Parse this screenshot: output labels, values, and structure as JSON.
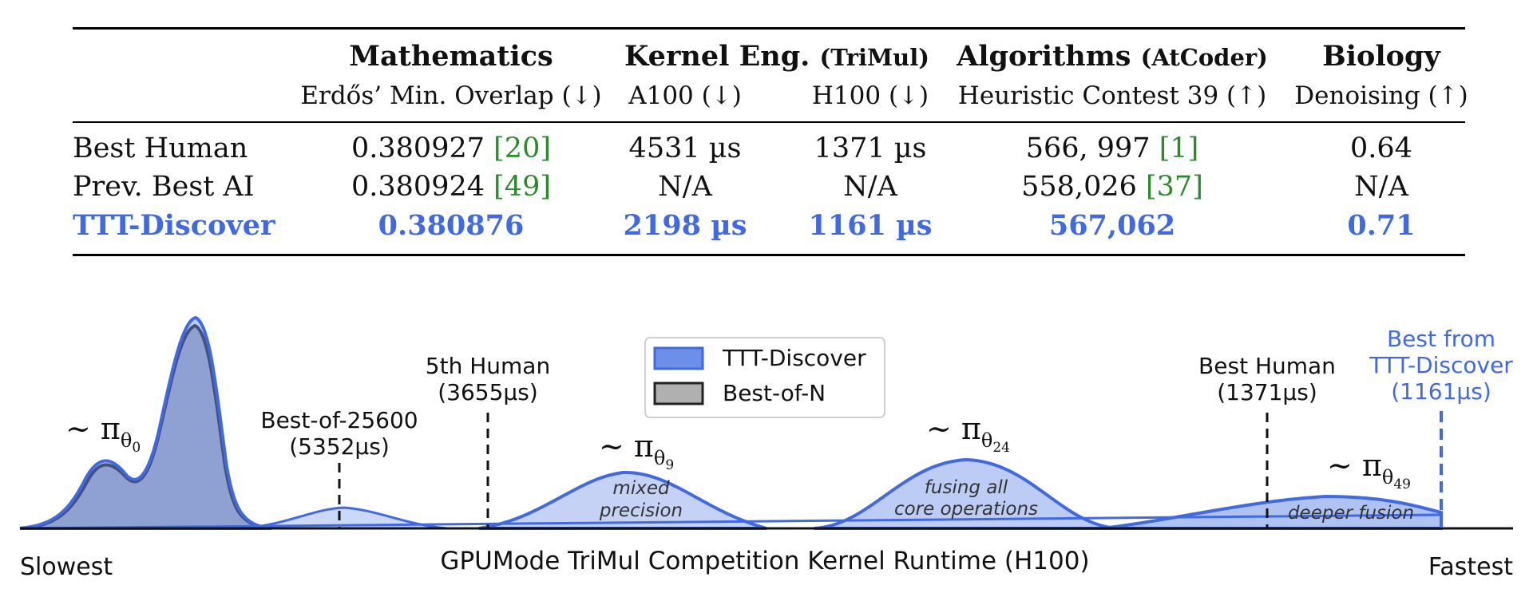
{
  "table": {
    "groups": [
      {
        "title": "Mathematics",
        "suffix": ""
      },
      {
        "title": "Kernel Eng.",
        "suffix": "(TriMul)"
      },
      {
        "title": "Algorithms",
        "suffix": "(AtCoder)"
      },
      {
        "title": "Biology",
        "suffix": ""
      }
    ],
    "subheaders": [
      "Erdős’ Min. Overlap (↓)",
      "A100 (↓)",
      "H100 (↓)",
      "Heuristic Contest 39 (↑)",
      "Denoising (↑)"
    ],
    "rows": [
      {
        "name": "Best Human",
        "cells": [
          {
            "value": "0.380927",
            "ref": "[20]"
          },
          {
            "value": "4531 µs",
            "ref": ""
          },
          {
            "value": "1371 µs",
            "ref": ""
          },
          {
            "value": "566, 997",
            "ref": "[1]"
          },
          {
            "value": "0.64",
            "ref": ""
          }
        ]
      },
      {
        "name": "Prev. Best AI",
        "cells": [
          {
            "value": "0.380924",
            "ref": "[49]"
          },
          {
            "value": "N/A",
            "ref": ""
          },
          {
            "value": "N/A",
            "ref": ""
          },
          {
            "value": "558,026",
            "ref": "[37]"
          },
          {
            "value": "N/A",
            "ref": ""
          }
        ]
      },
      {
        "name": "TTT-Discover",
        "highlight": true,
        "cells": [
          {
            "value": "0.380876",
            "ref": ""
          },
          {
            "value": "2198 µs",
            "ref": ""
          },
          {
            "value": "1161 µs",
            "ref": ""
          },
          {
            "value": "567,062",
            "ref": ""
          },
          {
            "value": "0.71",
            "ref": ""
          }
        ]
      }
    ],
    "colors": {
      "highlight": "#4169e1",
      "citation": "#2a8a2a"
    }
  },
  "chart_data": {
    "type": "area",
    "xlabel": "GPUMode TriMul Competition Kernel Runtime (H100)",
    "x_axis_ends": {
      "left": "Slowest",
      "right": "Fastest"
    },
    "x_direction": "left = slower runtime, right = faster runtime",
    "legend": {
      "position": "top-center",
      "entries": [
        {
          "label": "TTT-Discover",
          "fill": "#6d8fe8",
          "edge": "#4169e1"
        },
        {
          "label": "Best-of-N",
          "fill": "#b0b0b0",
          "edge": "#222222"
        }
      ]
    },
    "series": [
      {
        "name": "Best-of-N",
        "kind": "density",
        "peaks": [
          {
            "label": "~ πθ0",
            "note": ""
          }
        ]
      },
      {
        "name": "TTT-Discover",
        "kind": "density",
        "peaks": [
          {
            "label": "~ πθ0",
            "note": ""
          },
          {
            "label": "~ πθ9",
            "note": "mixed precision"
          },
          {
            "label": "~ πθ24",
            "note": "fusing all core operations"
          },
          {
            "label": "~ πθ49",
            "note": "deeper fusion"
          }
        ]
      }
    ],
    "reference_lines": [
      {
        "label": "Best-of-25600",
        "value_label": "(5352µs)",
        "runtime_us": 5352,
        "style": "dashed",
        "color": "#111111"
      },
      {
        "label": "5th Human",
        "value_label": "(3655µs)",
        "runtime_us": 3655,
        "style": "dashed",
        "color": "#111111"
      },
      {
        "label": "Best Human",
        "value_label": "(1371µs)",
        "runtime_us": 1371,
        "style": "dashed",
        "color": "#111111"
      },
      {
        "label": "Best from TTT-Discover",
        "value_label": "(1161µs)",
        "runtime_us": 1161,
        "style": "dashed",
        "color": "#4169e1"
      }
    ],
    "grid": false
  }
}
